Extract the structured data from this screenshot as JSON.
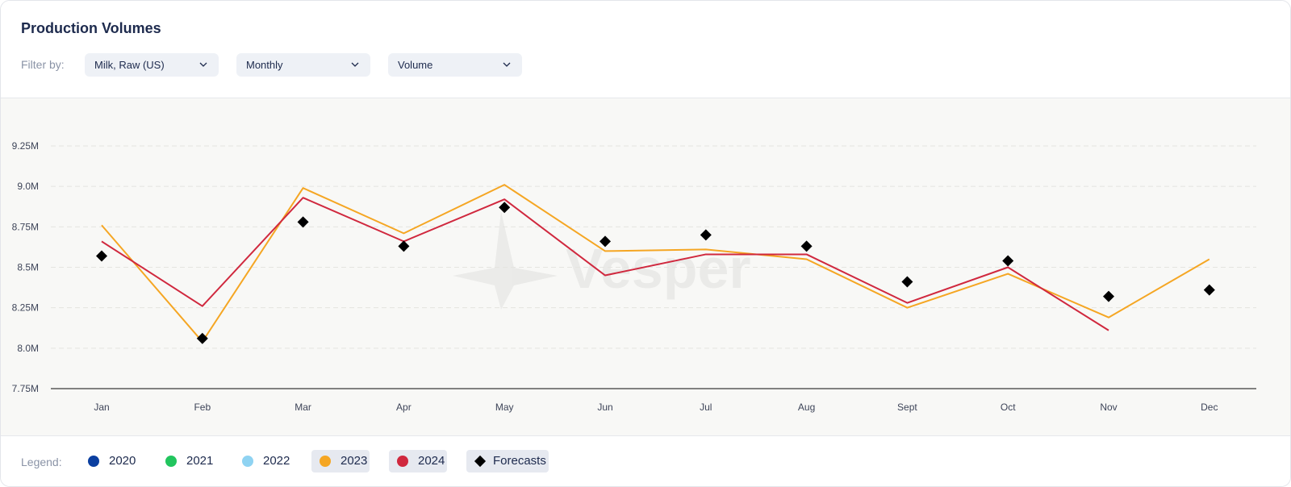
{
  "header": {
    "title": "Production Volumes",
    "filter_label": "Filter by:",
    "filters": [
      {
        "value": "Milk, Raw (US)"
      },
      {
        "value": "Monthly"
      },
      {
        "value": "Volume"
      }
    ]
  },
  "watermark": "Vesper",
  "legend": {
    "label": "Legend:",
    "items": [
      {
        "label": "2020",
        "color": "#0b3fa0",
        "active": false
      },
      {
        "label": "2021",
        "color": "#22c55e",
        "active": false
      },
      {
        "label": "2022",
        "color": "#8fd3f2",
        "active": false
      },
      {
        "label": "2023",
        "color": "#f5a623",
        "active": true
      },
      {
        "label": "2024",
        "color": "#d0283e",
        "active": true
      },
      {
        "label": "Forecasts",
        "color": "#000000",
        "active": true
      }
    ]
  },
  "chart_data": {
    "type": "line",
    "categories": [
      "Jan",
      "Feb",
      "Mar",
      "Apr",
      "May",
      "Jun",
      "Jul",
      "Aug",
      "Sept",
      "Oct",
      "Nov",
      "Dec"
    ],
    "y_ticks": [
      7750000,
      8000000,
      8250000,
      8500000,
      8750000,
      9000000,
      9250000
    ],
    "y_tick_labels": [
      "7.75M",
      "8.0M",
      "8.25M",
      "8.5M",
      "8.75M",
      "9.0M",
      "9.25M"
    ],
    "ylim": [
      7750000,
      9250000
    ],
    "grid": true,
    "series": [
      {
        "name": "2023",
        "color": "#f5a623",
        "kind": "line",
        "values": [
          8760000,
          8040000,
          8990000,
          8710000,
          9010000,
          8600000,
          8610000,
          8550000,
          8250000,
          8460000,
          8190000,
          8550000
        ]
      },
      {
        "name": "2024",
        "color": "#d0283e",
        "kind": "line",
        "values": [
          8660000,
          8260000,
          8930000,
          8660000,
          8920000,
          8450000,
          8580000,
          8580000,
          8280000,
          8500000,
          8110000,
          null
        ]
      },
      {
        "name": "Forecasts",
        "color": "#000000",
        "kind": "marker",
        "values": [
          8570000,
          8060000,
          8780000,
          8630000,
          8870000,
          8660000,
          8700000,
          8630000,
          8410000,
          8540000,
          8320000,
          8360000
        ]
      }
    ]
  }
}
